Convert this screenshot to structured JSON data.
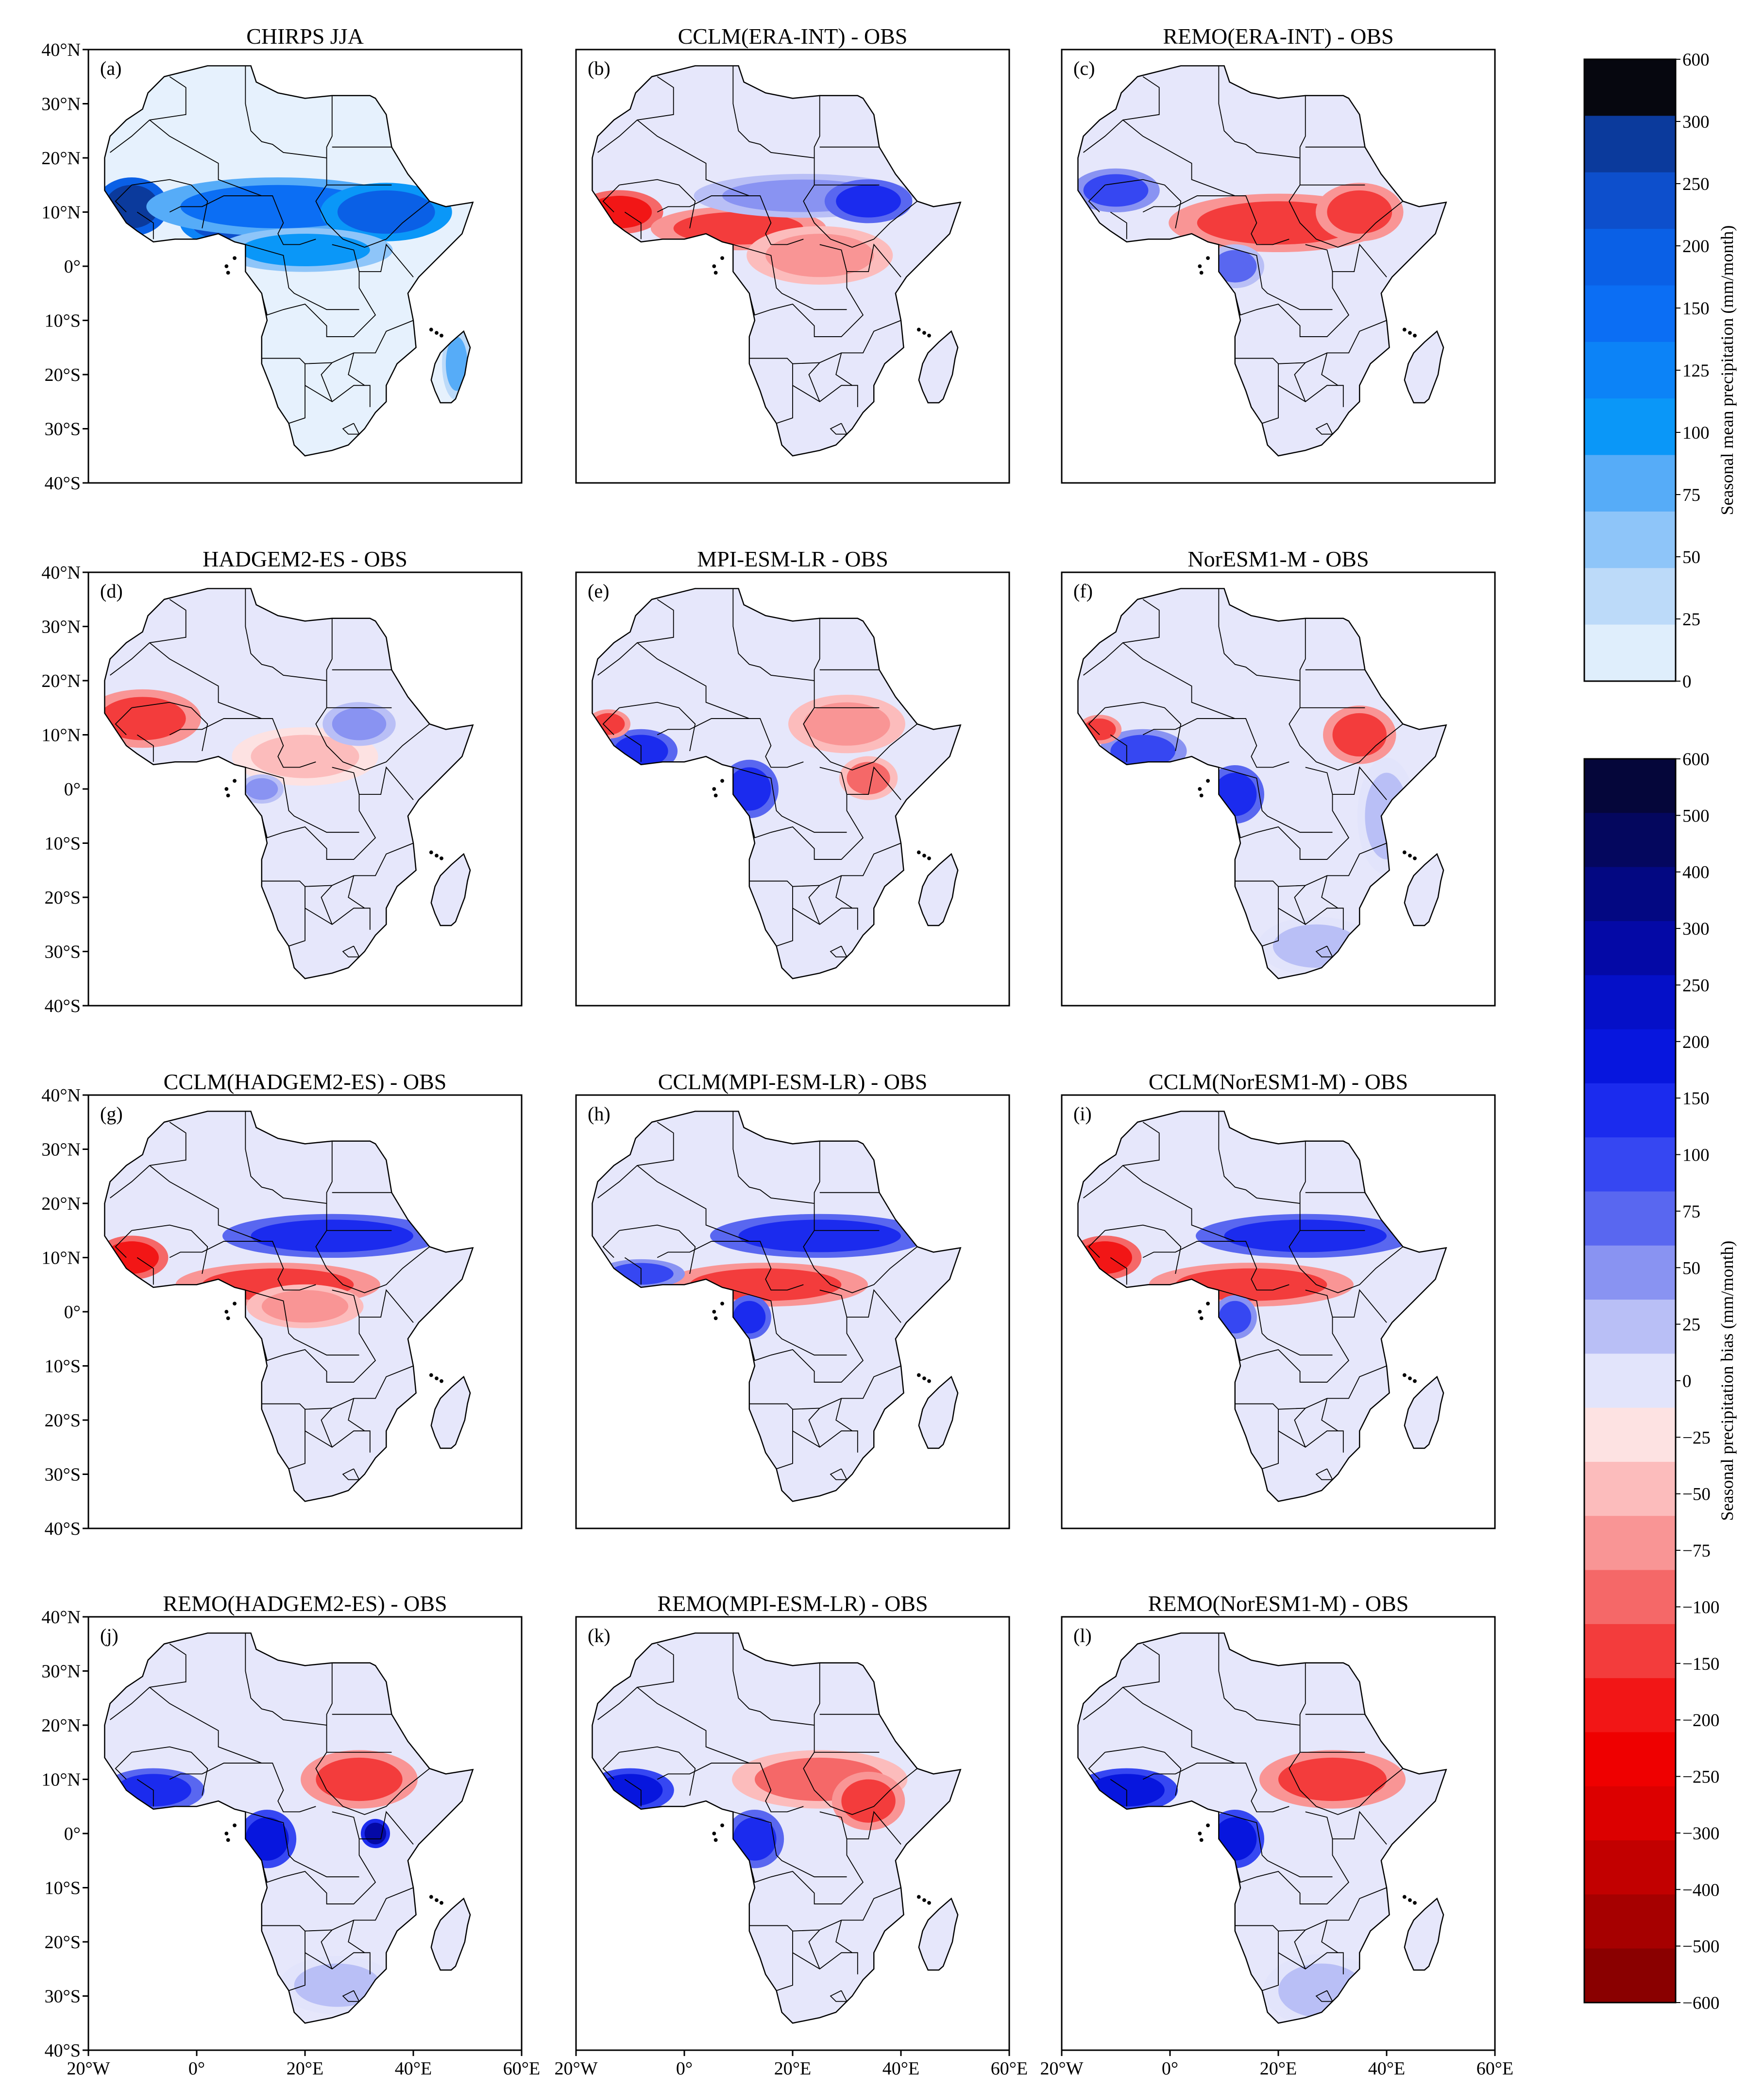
{
  "figure": {
    "panels": [
      {
        "id": "a",
        "label": "(a)",
        "title": "CHIRPS  JJA",
        "kind": "obs",
        "blobs": [
          {
            "lon": -12,
            "lat": 11,
            "rx": 5,
            "ry": 4,
            "v": 450
          },
          {
            "lon": 5,
            "lat": 8,
            "rx": 6,
            "ry": 3,
            "v": 280
          },
          {
            "lon": 15,
            "lat": 11,
            "rx": 18,
            "ry": 4,
            "v": 170
          },
          {
            "lon": 35,
            "lat": 10,
            "rx": 9,
            "ry": 4,
            "v": 220
          },
          {
            "lon": 20,
            "lat": 3,
            "rx": 12,
            "ry": 3,
            "v": 120
          },
          {
            "lon": 48,
            "lat": -18,
            "rx": 2,
            "ry": 5,
            "v": 90
          }
        ]
      },
      {
        "id": "b",
        "label": "(b)",
        "title": "CCLM(ERA-INT) - OBS",
        "kind": "bias",
        "blobs": [
          {
            "lon": -12,
            "lat": 10,
            "rx": 6,
            "ry": 3,
            "v": -160
          },
          {
            "lon": 10,
            "lat": 7,
            "rx": 12,
            "ry": 3,
            "v": -140
          },
          {
            "lon": 22,
            "lat": 13,
            "rx": 15,
            "ry": 3,
            "v": 60
          },
          {
            "lon": 34,
            "lat": 12,
            "rx": 6,
            "ry": 3,
            "v": 160
          },
          {
            "lon": 25,
            "lat": 2,
            "rx": 10,
            "ry": 4,
            "v": -60
          }
        ]
      },
      {
        "id": "c",
        "label": "(c)",
        "title": "REMO(ERA-INT) - OBS",
        "kind": "bias",
        "blobs": [
          {
            "lon": -10,
            "lat": 14,
            "rx": 6,
            "ry": 3,
            "v": 130
          },
          {
            "lon": 20,
            "lat": 8,
            "rx": 15,
            "ry": 4,
            "v": -110
          },
          {
            "lon": 35,
            "lat": 10,
            "rx": 6,
            "ry": 4,
            "v": -140
          },
          {
            "lon": 12,
            "lat": 0,
            "rx": 4,
            "ry": 3,
            "v": 90
          }
        ]
      },
      {
        "id": "d",
        "label": "(d)",
        "title": "HADGEM2-ES - OBS",
        "kind": "bias",
        "blobs": [
          {
            "lon": -10,
            "lat": 13,
            "rx": 8,
            "ry": 4,
            "v": -150
          },
          {
            "lon": 20,
            "lat": 6,
            "rx": 10,
            "ry": 4,
            "v": -50
          },
          {
            "lon": 30,
            "lat": 12,
            "rx": 5,
            "ry": 3,
            "v": 70
          },
          {
            "lon": 12,
            "lat": 0,
            "rx": 3,
            "ry": 2,
            "v": 60
          }
        ]
      },
      {
        "id": "e",
        "label": "(e)",
        "title": "MPI-ESM-LR - OBS",
        "kind": "bias",
        "blobs": [
          {
            "lon": -8,
            "lat": 7,
            "rx": 5,
            "ry": 3,
            "v": 160
          },
          {
            "lon": 12,
            "lat": 0,
            "rx": 4,
            "ry": 4,
            "v": 170
          },
          {
            "lon": 30,
            "lat": 12,
            "rx": 8,
            "ry": 4,
            "v": -70
          },
          {
            "lon": 34,
            "lat": 2,
            "rx": 4,
            "ry": 3,
            "v": -100
          },
          {
            "lon": -14,
            "lat": 12,
            "rx": 3,
            "ry": 2,
            "v": -130
          }
        ]
      },
      {
        "id": "f",
        "label": "(f)",
        "title": "NorESM1-M - OBS",
        "kind": "bias",
        "blobs": [
          {
            "lon": -5,
            "lat": 7,
            "rx": 6,
            "ry": 3,
            "v": 140
          },
          {
            "lon": 12,
            "lat": -1,
            "rx": 4,
            "ry": 4,
            "v": 160
          },
          {
            "lon": 35,
            "lat": 10,
            "rx": 5,
            "ry": 4,
            "v": -120
          },
          {
            "lon": 40,
            "lat": -5,
            "rx": 4,
            "ry": 8,
            "v": 40
          },
          {
            "lon": 27,
            "lat": -29,
            "rx": 8,
            "ry": 4,
            "v": 45
          },
          {
            "lon": -13,
            "lat": 11,
            "rx": 3,
            "ry": 2,
            "v": -140
          }
        ]
      },
      {
        "id": "g",
        "label": "(g)",
        "title": "CCLM(HADGEM2-ES) - OBS",
        "kind": "bias",
        "blobs": [
          {
            "lon": -12,
            "lat": 10,
            "rx": 5,
            "ry": 3,
            "v": -170
          },
          {
            "lon": 25,
            "lat": 14,
            "rx": 15,
            "ry": 3,
            "v": 180
          },
          {
            "lon": 15,
            "lat": 5,
            "rx": 14,
            "ry": 3,
            "v": -120
          },
          {
            "lon": 20,
            "lat": 1,
            "rx": 8,
            "ry": 3,
            "v": -60
          }
        ]
      },
      {
        "id": "h",
        "label": "(h)",
        "title": "CCLM(MPI-ESM-LR) - OBS",
        "kind": "bias",
        "blobs": [
          {
            "lon": 25,
            "lat": 14,
            "rx": 15,
            "ry": 3,
            "v": 160
          },
          {
            "lon": 15,
            "lat": 5,
            "rx": 14,
            "ry": 3,
            "v": -120
          },
          {
            "lon": -8,
            "lat": 7,
            "rx": 6,
            "ry": 2,
            "v": 110
          },
          {
            "lon": 12,
            "lat": -1,
            "rx": 3,
            "ry": 3,
            "v": 150
          }
        ]
      },
      {
        "id": "i",
        "label": "(i)",
        "title": "CCLM(NorESM1-M) - OBS",
        "kind": "bias",
        "blobs": [
          {
            "lon": 25,
            "lat": 14,
            "rx": 15,
            "ry": 3,
            "v": 170
          },
          {
            "lon": 15,
            "lat": 5,
            "rx": 14,
            "ry": 3,
            "v": -130
          },
          {
            "lon": -12,
            "lat": 10,
            "rx": 5,
            "ry": 3,
            "v": -160
          },
          {
            "lon": 12,
            "lat": -1,
            "rx": 3,
            "ry": 3,
            "v": 140
          }
        ]
      },
      {
        "id": "j",
        "label": "(j)",
        "title": "REMO(HADGEM2-ES) - OBS",
        "kind": "bias",
        "blobs": [
          {
            "lon": -8,
            "lat": 8,
            "rx": 7,
            "ry": 3,
            "v": 160
          },
          {
            "lon": 13,
            "lat": -1,
            "rx": 4,
            "ry": 4,
            "v": 200
          },
          {
            "lon": 30,
            "lat": 10,
            "rx": 8,
            "ry": 4,
            "v": -120
          },
          {
            "lon": 33,
            "lat": 0,
            "rx": 2,
            "ry": 2,
            "v": 300
          },
          {
            "lon": 26,
            "lat": -28,
            "rx": 8,
            "ry": 4,
            "v": 40
          }
        ]
      },
      {
        "id": "k",
        "label": "(k)",
        "title": "REMO(MPI-ESM-LR) - OBS",
        "kind": "bias",
        "blobs": [
          {
            "lon": -10,
            "lat": 8,
            "rx": 6,
            "ry": 3,
            "v": 220
          },
          {
            "lon": 13,
            "lat": -1,
            "rx": 4,
            "ry": 4,
            "v": 180
          },
          {
            "lon": 25,
            "lat": 10,
            "rx": 12,
            "ry": 4,
            "v": -80
          },
          {
            "lon": 34,
            "lat": 6,
            "rx": 5,
            "ry": 4,
            "v": -110
          }
        ]
      },
      {
        "id": "l",
        "label": "(l)",
        "title": "REMO(NorESM1-M) - OBS",
        "kind": "bias",
        "blobs": [
          {
            "lon": -8,
            "lat": 8,
            "rx": 7,
            "ry": 3,
            "v": 200
          },
          {
            "lon": 12,
            "lat": -1,
            "rx": 4,
            "ry": 4,
            "v": 200
          },
          {
            "lon": 30,
            "lat": 10,
            "rx": 10,
            "ry": 4,
            "v": -130
          },
          {
            "lon": 28,
            "lat": -29,
            "rx": 8,
            "ry": 5,
            "v": 45
          }
        ]
      }
    ],
    "lat_ticks": [
      "40°N",
      "30°N",
      "20°N",
      "10°N",
      "0°",
      "10°S",
      "20°S",
      "30°S",
      "40°S"
    ],
    "lon_ticks": [
      "20°W",
      "0°",
      "20°E",
      "40°E",
      "60°E"
    ],
    "colorbar_mean": {
      "title": "Seasonal mean precipitation (mm/month)",
      "labels": [
        "600",
        "300",
        "250",
        "200",
        "150",
        "125",
        "100",
        "75",
        "50",
        "25",
        "0"
      ],
      "colors": [
        "#06070f",
        "#0b3a9c",
        "#0d4fcc",
        "#0a60e6",
        "#0b6ef4",
        "#0c83f7",
        "#0a97f8",
        "#56acf8",
        "#8ec5f9",
        "#bcdaf9",
        "#dfeefc"
      ]
    },
    "colorbar_bias": {
      "title": "Seasonal precipitation bias (mm/month)",
      "labels": [
        "600",
        "500",
        "400",
        "300",
        "250",
        "200",
        "150",
        "100",
        "75",
        "50",
        "25",
        "0",
        "−25",
        "−50",
        "−75",
        "−100",
        "−150",
        "−200",
        "−250",
        "−300",
        "−400",
        "−500",
        "−600"
      ],
      "colors": [
        "#05063a",
        "#04075e",
        "#030882",
        "#0409a6",
        "#0510c8",
        "#0716de",
        "#1b2bee",
        "#3647f2",
        "#5967f0",
        "#8993f2",
        "#b9bff6",
        "#e2e4fb",
        "#fde2e2",
        "#fcbcbc",
        "#f99595",
        "#f56868",
        "#f33c3c",
        "#f21616",
        "#ef0000",
        "#dc0000",
        "#c20000",
        "#a60000",
        "#8a0000"
      ]
    },
    "ocean_color": "#ffffff",
    "land_color": "#e6e7fb",
    "obs_land_color": "#e6f1fd"
  }
}
